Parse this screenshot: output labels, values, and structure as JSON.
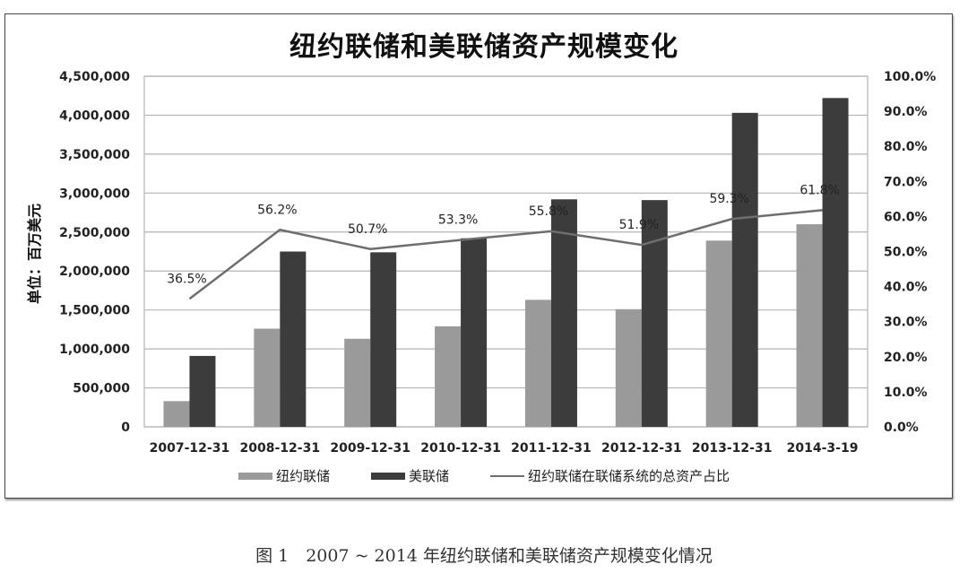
{
  "chart_title": "纽约联储和美联储资产规模变化",
  "caption": "图 1　2007 ~ 2014 年纽约联储和美联储资产规模变化情况",
  "y_axis_label": "单位：百万美元",
  "legend": {
    "ny_fed": "纽约联储",
    "fed": "美联储",
    "share": "纽约联储在联储系统的总资产占比"
  },
  "colors": {
    "ny_fed": "#9a9a9a",
    "fed": "#3c3c3c",
    "share_line": "#6e6e6e",
    "grid": "#b4b4b4"
  },
  "chart_data": {
    "type": "bar",
    "title": "纽约联储和美联储资产规模变化",
    "xlabel": "",
    "ylabel": "单位：百万美元",
    "ylim": [
      0,
      4500000
    ],
    "y2lim": [
      0,
      100
    ],
    "y_ticks": [
      "0",
      "500,000",
      "1,000,000",
      "1,500,000",
      "2,000,000",
      "2,500,000",
      "3,000,000",
      "3,500,000",
      "4,000,000",
      "4,500,000"
    ],
    "y2_ticks": [
      "0.0%",
      "10.0%",
      "20.0%",
      "30.0%",
      "40.0%",
      "50.0%",
      "60.0%",
      "70.0%",
      "80.0%",
      "90.0%",
      "100.0%"
    ],
    "grid": true,
    "legend_position": "bottom",
    "categories": [
      "2007-12-31",
      "2008-12-31",
      "2009-12-31",
      "2010-12-31",
      "2011-12-31",
      "2012-12-31",
      "2013-12-31",
      "2014-3-19"
    ],
    "series": [
      {
        "name": "纽约联储",
        "type": "bar",
        "axis": "left",
        "values": [
          330000,
          1260000,
          1130000,
          1290000,
          1630000,
          1510000,
          2390000,
          2600000
        ]
      },
      {
        "name": "美联储",
        "type": "bar",
        "axis": "left",
        "values": [
          910000,
          2250000,
          2240000,
          2420000,
          2920000,
          2910000,
          4030000,
          4220000
        ]
      },
      {
        "name": "纽约联储在联储系统的总资产占比",
        "type": "line",
        "axis": "right",
        "values": [
          36.5,
          56.2,
          50.7,
          53.3,
          55.8,
          51.9,
          59.3,
          61.8
        ],
        "labels": [
          "36.5%",
          "56.2%",
          "50.7%",
          "53.3%",
          "55.8%",
          "51.9%",
          "59.3%",
          "61.8%"
        ]
      }
    ]
  }
}
